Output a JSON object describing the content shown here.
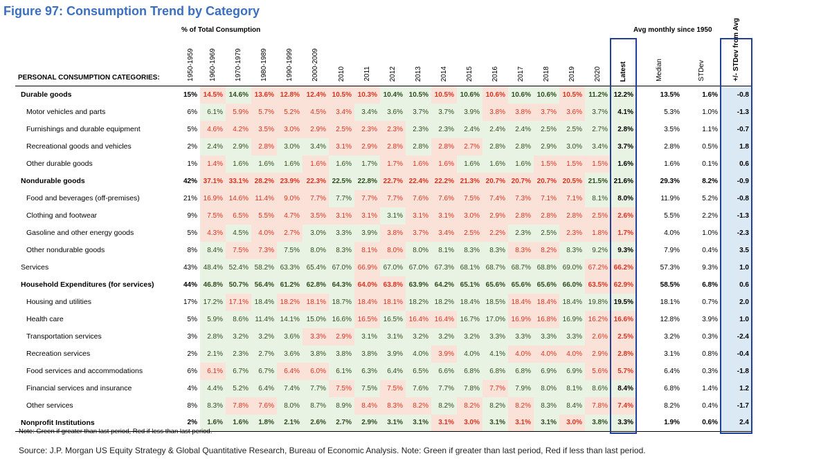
{
  "title": "Figure 97: Consumption Trend by Category",
  "group_header_left": "% of Total Consumption",
  "group_header_right": "Avg monthly since 1950",
  "category_header": "PERSONAL CONSUMPTION CATEGORIES:",
  "columns": [
    "1950-1959",
    "1960-1969",
    "1970-1979",
    "1980-1989",
    "1990-1999",
    "2000-2009",
    "2010",
    "2011",
    "2012",
    "2013",
    "2014",
    "2015",
    "2016",
    "2017",
    "2018",
    "2019",
    "2020",
    "Latest",
    "Median",
    "STDev",
    "+/- STDev from Avg"
  ],
  "rows": [
    {
      "label": "Durable goods",
      "bold": true,
      "indent": 0,
      "v": [
        "15%",
        "14.5%",
        "14.6%",
        "13.6%",
        "12.8%",
        "12.4%",
        "10.5%",
        "10.3%",
        "10.4%",
        "10.5%",
        "10.5%",
        "10.6%",
        "10.6%",
        "10.6%",
        "10.6%",
        "10.5%",
        "11.2%",
        "12.2%",
        "13.5%",
        "1.6%",
        "-0.8"
      ],
      "d": [
        "",
        "d",
        "u",
        "d",
        "d",
        "d",
        "d",
        "d",
        "u",
        "u",
        "d",
        "u",
        "d",
        "u",
        "u",
        "d",
        "u",
        "u"
      ]
    },
    {
      "label": "Motor vehicles and parts",
      "bold": false,
      "indent": 1,
      "v": [
        "6%",
        "6.1%",
        "5.9%",
        "5.7%",
        "5.2%",
        "4.5%",
        "3.4%",
        "3.4%",
        "3.6%",
        "3.7%",
        "3.7%",
        "3.9%",
        "3.8%",
        "3.8%",
        "3.7%",
        "3.6%",
        "3.7%",
        "4.1%",
        "5.3%",
        "1.0%",
        "-1.3"
      ],
      "d": [
        "",
        "u",
        "d",
        "d",
        "d",
        "d",
        "d",
        "u",
        "u",
        "u",
        "u",
        "u",
        "d",
        "d",
        "d",
        "d",
        "u",
        "u"
      ]
    },
    {
      "label": "Furnishings and durable equipment",
      "bold": false,
      "indent": 1,
      "v": [
        "5%",
        "4.6%",
        "4.2%",
        "3.5%",
        "3.0%",
        "2.9%",
        "2.5%",
        "2.3%",
        "2.3%",
        "2.3%",
        "2.3%",
        "2.4%",
        "2.4%",
        "2.4%",
        "2.5%",
        "2.5%",
        "2.7%",
        "2.8%",
        "3.5%",
        "1.1%",
        "-0.7"
      ],
      "d": [
        "",
        "d",
        "d",
        "d",
        "d",
        "d",
        "d",
        "d",
        "d",
        "u",
        "u",
        "u",
        "u",
        "u",
        "u",
        "u",
        "u",
        "u"
      ]
    },
    {
      "label": "Recreational goods and vehicles",
      "bold": false,
      "indent": 1,
      "v": [
        "2%",
        "2.4%",
        "2.9%",
        "2.8%",
        "3.0%",
        "3.4%",
        "3.1%",
        "2.9%",
        "2.8%",
        "2.8%",
        "2.8%",
        "2.7%",
        "2.8%",
        "2.8%",
        "2.9%",
        "3.0%",
        "3.4%",
        "3.7%",
        "2.8%",
        "0.5%",
        "1.8"
      ],
      "d": [
        "",
        "u",
        "u",
        "d",
        "u",
        "u",
        "d",
        "d",
        "d",
        "u",
        "d",
        "d",
        "u",
        "u",
        "u",
        "u",
        "u",
        "u"
      ]
    },
    {
      "label": "Other durable goods",
      "bold": false,
      "indent": 1,
      "v": [
        "1%",
        "1.4%",
        "1.6%",
        "1.6%",
        "1.6%",
        "1.6%",
        "1.6%",
        "1.7%",
        "1.7%",
        "1.6%",
        "1.6%",
        "1.6%",
        "1.6%",
        "1.6%",
        "1.5%",
        "1.5%",
        "1.5%",
        "1.6%",
        "1.6%",
        "0.1%",
        "0.6"
      ],
      "d": [
        "",
        "d",
        "u",
        "u",
        "u",
        "d",
        "u",
        "u",
        "d",
        "d",
        "d",
        "u",
        "u",
        "u",
        "d",
        "d",
        "d",
        "u"
      ]
    },
    {
      "label": "Nondurable goods",
      "bold": true,
      "indent": 0,
      "v": [
        "42%",
        "37.1%",
        "33.1%",
        "28.2%",
        "23.9%",
        "22.3%",
        "22.5%",
        "22.8%",
        "22.7%",
        "22.4%",
        "22.2%",
        "21.3%",
        "20.7%",
        "20.7%",
        "20.7%",
        "20.5%",
        "21.5%",
        "21.6%",
        "29.3%",
        "8.2%",
        "-0.9"
      ],
      "d": [
        "",
        "d",
        "d",
        "d",
        "d",
        "d",
        "u",
        "u",
        "d",
        "d",
        "d",
        "d",
        "d",
        "d",
        "d",
        "d",
        "u",
        "u"
      ]
    },
    {
      "label": "Food and beverages (off-premises)",
      "bold": false,
      "indent": 1,
      "v": [
        "21%",
        "16.9%",
        "14.6%",
        "11.4%",
        "9.0%",
        "7.7%",
        "7.7%",
        "7.7%",
        "7.7%",
        "7.6%",
        "7.6%",
        "7.5%",
        "7.4%",
        "7.3%",
        "7.1%",
        "7.1%",
        "8.1%",
        "8.0%",
        "11.9%",
        "5.2%",
        "-0.8"
      ],
      "d": [
        "",
        "d",
        "d",
        "d",
        "d",
        "d",
        "u",
        "d",
        "d",
        "d",
        "d",
        "d",
        "d",
        "d",
        "d",
        "d",
        "u",
        "u"
      ]
    },
    {
      "label": "Clothing and footwear",
      "bold": false,
      "indent": 1,
      "v": [
        "9%",
        "7.5%",
        "6.5%",
        "5.5%",
        "4.7%",
        "3.5%",
        "3.1%",
        "3.1%",
        "3.1%",
        "3.1%",
        "3.1%",
        "3.0%",
        "2.9%",
        "2.8%",
        "2.8%",
        "2.8%",
        "2.5%",
        "2.6%",
        "5.5%",
        "2.2%",
        "-1.3"
      ],
      "d": [
        "",
        "d",
        "d",
        "d",
        "d",
        "d",
        "d",
        "d",
        "u",
        "d",
        "d",
        "d",
        "d",
        "d",
        "d",
        "d",
        "d",
        "d"
      ]
    },
    {
      "label": "Gasoline and other energy goods",
      "bold": false,
      "indent": 1,
      "v": [
        "5%",
        "4.3%",
        "4.5%",
        "4.0%",
        "2.7%",
        "3.0%",
        "3.3%",
        "3.9%",
        "3.8%",
        "3.7%",
        "3.4%",
        "2.5%",
        "2.2%",
        "2.3%",
        "2.5%",
        "2.3%",
        "1.8%",
        "1.7%",
        "4.0%",
        "1.0%",
        "-2.3"
      ],
      "d": [
        "",
        "d",
        "u",
        "d",
        "d",
        "u",
        "u",
        "u",
        "d",
        "d",
        "d",
        "d",
        "d",
        "u",
        "u",
        "d",
        "d",
        "d"
      ]
    },
    {
      "label": "Other nondurable goods",
      "bold": false,
      "indent": 1,
      "v": [
        "8%",
        "8.4%",
        "7.5%",
        "7.3%",
        "7.5%",
        "8.0%",
        "8.3%",
        "8.1%",
        "8.0%",
        "8.0%",
        "8.1%",
        "8.3%",
        "8.3%",
        "8.3%",
        "8.2%",
        "8.3%",
        "9.2%",
        "9.3%",
        "7.9%",
        "0.4%",
        "3.5"
      ],
      "d": [
        "",
        "u",
        "d",
        "d",
        "u",
        "u",
        "u",
        "d",
        "d",
        "u",
        "u",
        "u",
        "u",
        "d",
        "d",
        "u",
        "u",
        "u"
      ]
    },
    {
      "label": "Services",
      "bold": false,
      "indent": 0,
      "v": [
        "43%",
        "48.4%",
        "52.4%",
        "58.2%",
        "63.3%",
        "65.4%",
        "67.0%",
        "66.9%",
        "67.0%",
        "67.0%",
        "67.3%",
        "68.1%",
        "68.7%",
        "68.7%",
        "68.8%",
        "69.0%",
        "67.2%",
        "66.2%",
        "57.3%",
        "9.3%",
        "1.0"
      ],
      "d": [
        "",
        "u",
        "u",
        "u",
        "u",
        "u",
        "u",
        "d",
        "u",
        "u",
        "u",
        "u",
        "u",
        "u",
        "u",
        "u",
        "d",
        "d"
      ]
    },
    {
      "label": "Household Expenditures (for services)",
      "bold": true,
      "indent": 0,
      "v": [
        "44%",
        "46.8%",
        "50.7%",
        "56.4%",
        "61.2%",
        "62.8%",
        "64.3%",
        "64.0%",
        "63.8%",
        "63.9%",
        "64.2%",
        "65.1%",
        "65.6%",
        "65.6%",
        "65.6%",
        "66.0%",
        "63.5%",
        "62.9%",
        "58.5%",
        "6.8%",
        "0.6"
      ],
      "d": [
        "",
        "u",
        "u",
        "u",
        "u",
        "u",
        "u",
        "d",
        "d",
        "u",
        "u",
        "u",
        "u",
        "u",
        "u",
        "u",
        "d",
        "d"
      ]
    },
    {
      "label": "Housing and utilities",
      "bold": false,
      "indent": 1,
      "v": [
        "17%",
        "17.2%",
        "17.1%",
        "18.4%",
        "18.2%",
        "18.1%",
        "18.7%",
        "18.4%",
        "18.1%",
        "18.2%",
        "18.2%",
        "18.4%",
        "18.5%",
        "18.4%",
        "18.4%",
        "18.4%",
        "19.8%",
        "19.5%",
        "18.1%",
        "0.7%",
        "2.0"
      ],
      "d": [
        "",
        "u",
        "d",
        "u",
        "d",
        "d",
        "u",
        "d",
        "d",
        "u",
        "u",
        "u",
        "u",
        "d",
        "d",
        "u",
        "u",
        "u"
      ]
    },
    {
      "label": "Health care",
      "bold": false,
      "indent": 1,
      "v": [
        "5%",
        "5.9%",
        "8.6%",
        "11.4%",
        "14.1%",
        "15.0%",
        "16.6%",
        "16.5%",
        "16.5%",
        "16.4%",
        "16.4%",
        "16.7%",
        "17.0%",
        "16.9%",
        "16.8%",
        "16.9%",
        "16.2%",
        "16.6%",
        "12.8%",
        "3.9%",
        "1.0"
      ],
      "d": [
        "",
        "u",
        "u",
        "u",
        "u",
        "u",
        "u",
        "d",
        "u",
        "d",
        "d",
        "u",
        "u",
        "d",
        "d",
        "u",
        "d",
        "d"
      ]
    },
    {
      "label": "Transportation services",
      "bold": false,
      "indent": 1,
      "v": [
        "3%",
        "2.8%",
        "3.2%",
        "3.2%",
        "3.6%",
        "3.3%",
        "2.9%",
        "3.1%",
        "3.1%",
        "3.2%",
        "3.2%",
        "3.2%",
        "3.3%",
        "3.3%",
        "3.3%",
        "3.3%",
        "2.6%",
        "2.5%",
        "3.2%",
        "0.3%",
        "-2.4"
      ],
      "d": [
        "",
        "u",
        "u",
        "u",
        "u",
        "d",
        "d",
        "u",
        "u",
        "u",
        "u",
        "u",
        "u",
        "u",
        "u",
        "u",
        "d",
        "d"
      ]
    },
    {
      "label": "Recreation services",
      "bold": false,
      "indent": 1,
      "v": [
        "2%",
        "2.1%",
        "2.3%",
        "2.7%",
        "3.6%",
        "3.8%",
        "3.8%",
        "3.8%",
        "3.9%",
        "4.0%",
        "3.9%",
        "4.0%",
        "4.1%",
        "4.0%",
        "4.0%",
        "4.0%",
        "2.9%",
        "2.8%",
        "3.1%",
        "0.8%",
        "-0.4"
      ],
      "d": [
        "",
        "u",
        "u",
        "u",
        "u",
        "u",
        "u",
        "u",
        "u",
        "u",
        "d",
        "u",
        "u",
        "d",
        "d",
        "d",
        "d",
        "d"
      ]
    },
    {
      "label": "Food services and accommodations",
      "bold": false,
      "indent": 1,
      "v": [
        "6%",
        "6.1%",
        "6.7%",
        "6.7%",
        "6.4%",
        "6.0%",
        "6.1%",
        "6.3%",
        "6.4%",
        "6.5%",
        "6.6%",
        "6.8%",
        "6.8%",
        "6.8%",
        "6.9%",
        "6.9%",
        "5.6%",
        "5.7%",
        "6.4%",
        "0.3%",
        "-1.8"
      ],
      "d": [
        "",
        "d",
        "u",
        "u",
        "d",
        "d",
        "u",
        "u",
        "u",
        "u",
        "u",
        "u",
        "u",
        "u",
        "u",
        "u",
        "d",
        "d"
      ]
    },
    {
      "label": "Financial services and insurance",
      "bold": false,
      "indent": 1,
      "v": [
        "4%",
        "4.4%",
        "5.2%",
        "6.4%",
        "7.4%",
        "7.7%",
        "7.5%",
        "7.5%",
        "7.5%",
        "7.6%",
        "7.7%",
        "7.8%",
        "7.7%",
        "7.9%",
        "8.0%",
        "8.1%",
        "8.6%",
        "8.4%",
        "6.8%",
        "1.4%",
        "1.2"
      ],
      "d": [
        "",
        "u",
        "u",
        "u",
        "u",
        "u",
        "d",
        "u",
        "d",
        "u",
        "u",
        "u",
        "d",
        "u",
        "u",
        "u",
        "u",
        "u"
      ]
    },
    {
      "label": "Other services",
      "bold": false,
      "indent": 1,
      "v": [
        "8%",
        "8.3%",
        "7.8%",
        "7.6%",
        "8.0%",
        "8.7%",
        "8.9%",
        "8.4%",
        "8.3%",
        "8.2%",
        "8.2%",
        "8.2%",
        "8.2%",
        "8.2%",
        "8.3%",
        "8.4%",
        "7.8%",
        "7.4%",
        "8.2%",
        "0.4%",
        "-1.7"
      ],
      "d": [
        "",
        "u",
        "d",
        "d",
        "u",
        "u",
        "u",
        "d",
        "d",
        "d",
        "u",
        "d",
        "u",
        "d",
        "u",
        "u",
        "d",
        "d"
      ]
    },
    {
      "label": "Nonprofit Institutions",
      "bold": true,
      "indent": 0,
      "v": [
        "2%",
        "1.6%",
        "1.6%",
        "1.8%",
        "2.1%",
        "2.6%",
        "2.7%",
        "2.9%",
        "3.1%",
        "3.1%",
        "3.1%",
        "3.0%",
        "3.1%",
        "3.1%",
        "3.1%",
        "3.0%",
        "3.8%",
        "3.3%",
        "1.9%",
        "0.6%",
        "2.4"
      ],
      "d": [
        "",
        "u",
        "u",
        "u",
        "u",
        "u",
        "u",
        "u",
        "u",
        "u",
        "d",
        "d",
        "u",
        "d",
        "u",
        "d",
        "u",
        "u"
      ]
    }
  ],
  "note": "Note: Green if greater than last period, Red if less than last period.",
  "source": "Source: J.P. Morgan US Equity Strategy & Global Quantitative Research, Bureau of Economic Analysis. Note: Green if greater than last period, Red if less than last period.",
  "colors": {
    "title": "#3b6fc0",
    "green_bg": "#e9f3e3",
    "red_bg": "#fbe2d8",
    "red_text": "#d8321f",
    "box": "#1f3f99",
    "stdev_bg": "#dbe9f5"
  }
}
